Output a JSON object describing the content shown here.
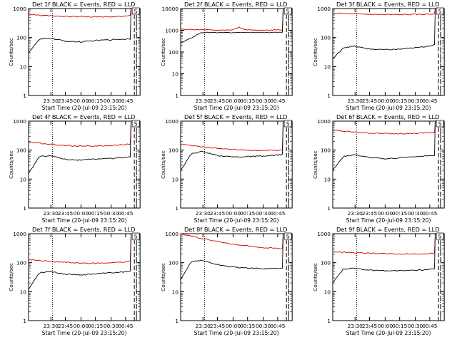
{
  "figure": {
    "background": "#ffffff",
    "axis_color": "#000000",
    "events_color": "#000000",
    "lld_color": "#d40000"
  },
  "chart_data": [
    {
      "type": "line",
      "title": "Det 1f BLACK = Events, RED = LLD",
      "xlabel": "Start Time (20-Jul-09 23:15:20)",
      "ylabel": "Counts/sec",
      "scale": "log",
      "ylim": [
        1,
        1000
      ],
      "ytick_labels": [
        "1",
        "10",
        "100",
        "1000"
      ],
      "xtick_labels": [
        "23:30",
        "23:45",
        "00:00",
        "00:15",
        "00:30",
        "00:45"
      ],
      "marker_label": "S",
      "series": [
        {
          "color": "#d40000",
          "x": [
            0,
            0.2,
            0.4,
            0.6,
            0.8,
            0.96
          ],
          "values": [
            620,
            560,
            530,
            520,
            530,
            560
          ]
        },
        {
          "color": "#000000",
          "x": [
            0,
            0.1,
            0.2,
            0.35,
            0.5,
            0.65,
            0.8,
            0.96
          ],
          "values": [
            30,
            85,
            95,
            75,
            70,
            80,
            85,
            90
          ]
        }
      ]
    },
    {
      "type": "line",
      "title": "Det 2f BLACK = Events, RED = LLD",
      "xlabel": "Start Time (20-Jul-09 23:15:20)",
      "ylabel": "Counts/sec",
      "scale": "log",
      "ylim": [
        1,
        10000
      ],
      "ytick_labels": [
        "1",
        "10",
        "100",
        "1000",
        "10000"
      ],
      "xtick_labels": [
        "23:30",
        "23:45",
        "00:00",
        "00:15",
        "00:30",
        "00:45"
      ],
      "marker_label": "S",
      "series": [
        {
          "color": "#d40000",
          "x": [
            0,
            0.2,
            0.4,
            0.5,
            0.55,
            0.6,
            0.8,
            0.96
          ],
          "values": [
            1100,
            1050,
            1000,
            1100,
            1400,
            1050,
            1000,
            1050
          ]
        },
        {
          "color": "#000000",
          "x": [
            0,
            0.2,
            0.4,
            0.6,
            0.8,
            0.96
          ],
          "values": [
            250,
            800,
            780,
            800,
            790,
            810
          ]
        }
      ]
    },
    {
      "type": "line",
      "title": "Det 3f BLACK = Events, RED = LLD",
      "xlabel": "Start Time (20-Jul-09 23:15:20)",
      "ylabel": "Counts/sec",
      "scale": "log",
      "ylim": [
        1,
        1000
      ],
      "ytick_labels": [
        "1",
        "10",
        "100",
        "1000"
      ],
      "xtick_labels": [
        "23:30",
        "23:45",
        "00:00",
        "00:15",
        "00:30",
        "00:45"
      ],
      "marker_label": "S",
      "series": [
        {
          "color": "#d40000",
          "x": [
            0,
            0.2,
            0.4,
            0.6,
            0.8,
            0.96
          ],
          "values": [
            700,
            650,
            630,
            620,
            630,
            650
          ]
        },
        {
          "color": "#000000",
          "x": [
            0,
            0.1,
            0.2,
            0.35,
            0.5,
            0.65,
            0.8,
            0.96
          ],
          "values": [
            18,
            45,
            50,
            40,
            38,
            40,
            45,
            55
          ]
        }
      ]
    },
    {
      "type": "line",
      "title": "Det 4f BLACK = Events, RED = LLD",
      "xlabel": "Start Time (20-Jul-09 23:15:20)",
      "ylabel": "Counts/sec",
      "scale": "log",
      "ylim": [
        1,
        1000
      ],
      "ytick_labels": [
        "1",
        "10",
        "100",
        "1000"
      ],
      "xtick_labels": [
        "23:30",
        "23:45",
        "00:00",
        "00:15",
        "00:30",
        "00:45"
      ],
      "marker_label": "S",
      "series": [
        {
          "color": "#d40000",
          "x": [
            0,
            0.2,
            0.4,
            0.6,
            0.8,
            0.96
          ],
          "values": [
            190,
            160,
            140,
            135,
            145,
            160
          ]
        },
        {
          "color": "#000000",
          "x": [
            0,
            0.1,
            0.2,
            0.35,
            0.5,
            0.65,
            0.8,
            0.96
          ],
          "values": [
            15,
            60,
            65,
            48,
            45,
            50,
            52,
            58
          ]
        }
      ]
    },
    {
      "type": "line",
      "title": "Det 5f BLACK = Events, RED = LLD",
      "xlabel": "Start Time (20-Jul-09 23:15:20)",
      "ylabel": "Counts/sec",
      "scale": "log",
      "ylim": [
        1,
        1000
      ],
      "ytick_labels": [
        "1",
        "10",
        "100",
        "1000"
      ],
      "xtick_labels": [
        "23:30",
        "23:45",
        "00:00",
        "00:15",
        "00:30",
        "00:45"
      ],
      "marker_label": "S",
      "series": [
        {
          "color": "#d40000",
          "x": [
            0,
            0.2,
            0.4,
            0.6,
            0.8,
            0.96
          ],
          "values": [
            160,
            130,
            110,
            100,
            95,
            100
          ]
        },
        {
          "color": "#000000",
          "x": [
            0,
            0.1,
            0.2,
            0.35,
            0.5,
            0.65,
            0.8,
            0.96
          ],
          "values": [
            20,
            75,
            90,
            65,
            58,
            60,
            62,
            70
          ]
        }
      ]
    },
    {
      "type": "line",
      "title": "Det 6f BLACK = Events, RED = LLD",
      "xlabel": "Start Time (20-Jul-09 23:15:20)",
      "ylabel": "Counts/sec",
      "scale": "log",
      "ylim": [
        1,
        1000
      ],
      "ytick_labels": [
        "1",
        "10",
        "100",
        "1000"
      ],
      "xtick_labels": [
        "23:30",
        "23:45",
        "00:00",
        "00:15",
        "00:30",
        "00:45"
      ],
      "marker_label": "S",
      "series": [
        {
          "color": "#d40000",
          "x": [
            0,
            0.2,
            0.4,
            0.6,
            0.8,
            0.96
          ],
          "values": [
            480,
            420,
            380,
            370,
            380,
            410
          ]
        },
        {
          "color": "#000000",
          "x": [
            0,
            0.1,
            0.2,
            0.35,
            0.5,
            0.65,
            0.8,
            0.96
          ],
          "values": [
            20,
            60,
            70,
            55,
            50,
            55,
            60,
            65
          ]
        }
      ]
    },
    {
      "type": "line",
      "title": "Det 7f BLACK = Events, RED = LLD",
      "xlabel": "Start Time (20-Jul-09 23:15:20)",
      "ylabel": "Counts/sec",
      "scale": "log",
      "ylim": [
        1,
        1000
      ],
      "ytick_labels": [
        "1",
        "10",
        "100",
        "1000"
      ],
      "xtick_labels": [
        "23:30",
        "23:45",
        "00:00",
        "00:15",
        "00:30",
        "00:45"
      ],
      "marker_label": "S",
      "series": [
        {
          "color": "#d40000",
          "x": [
            0,
            0.2,
            0.4,
            0.6,
            0.8,
            0.96
          ],
          "values": [
            130,
            110,
            100,
            95,
            100,
            110
          ]
        },
        {
          "color": "#000000",
          "x": [
            0,
            0.1,
            0.2,
            0.35,
            0.5,
            0.65,
            0.8,
            0.96
          ],
          "values": [
            12,
            45,
            50,
            40,
            38,
            42,
            45,
            50
          ]
        }
      ]
    },
    {
      "type": "line",
      "title": "Det 8f BLACK = Events, RED = LLD",
      "xlabel": "Start Time (20-Jul-09 23:15:20)",
      "ylabel": "Counts/sec",
      "scale": "log",
      "ylim": [
        1,
        1000
      ],
      "ytick_labels": [
        "1",
        "10",
        "100",
        "1000"
      ],
      "xtick_labels": [
        "23:30",
        "23:45",
        "00:00",
        "00:15",
        "00:30",
        "00:45"
      ],
      "marker_label": "S",
      "series": [
        {
          "color": "#d40000",
          "x": [
            0,
            0.15,
            0.3,
            0.45,
            0.6,
            0.8,
            0.96
          ],
          "values": [
            1000,
            750,
            580,
            460,
            390,
            330,
            310
          ]
        },
        {
          "color": "#000000",
          "x": [
            0,
            0.1,
            0.2,
            0.35,
            0.5,
            0.65,
            0.8,
            0.96
          ],
          "values": [
            25,
            110,
            120,
            85,
            70,
            65,
            62,
            65
          ]
        }
      ]
    },
    {
      "type": "line",
      "title": "Det 9f BLACK = Events, RED = LLD",
      "xlabel": "Start Time (20-Jul-09 23:15:20)",
      "ylabel": "Counts/sec",
      "scale": "log",
      "ylim": [
        1,
        1000
      ],
      "ytick_labels": [
        "1",
        "10",
        "100",
        "1000"
      ],
      "xtick_labels": [
        "23:30",
        "23:45",
        "00:00",
        "00:15",
        "00:30",
        "00:45"
      ],
      "marker_label": "S",
      "series": [
        {
          "color": "#d40000",
          "x": [
            0,
            0.2,
            0.4,
            0.6,
            0.8,
            0.96
          ],
          "values": [
            240,
            220,
            210,
            200,
            200,
            210
          ]
        },
        {
          "color": "#000000",
          "x": [
            0,
            0.1,
            0.2,
            0.35,
            0.5,
            0.65,
            0.8,
            0.96
          ],
          "values": [
            20,
            60,
            65,
            55,
            52,
            53,
            55,
            60
          ]
        }
      ]
    }
  ]
}
